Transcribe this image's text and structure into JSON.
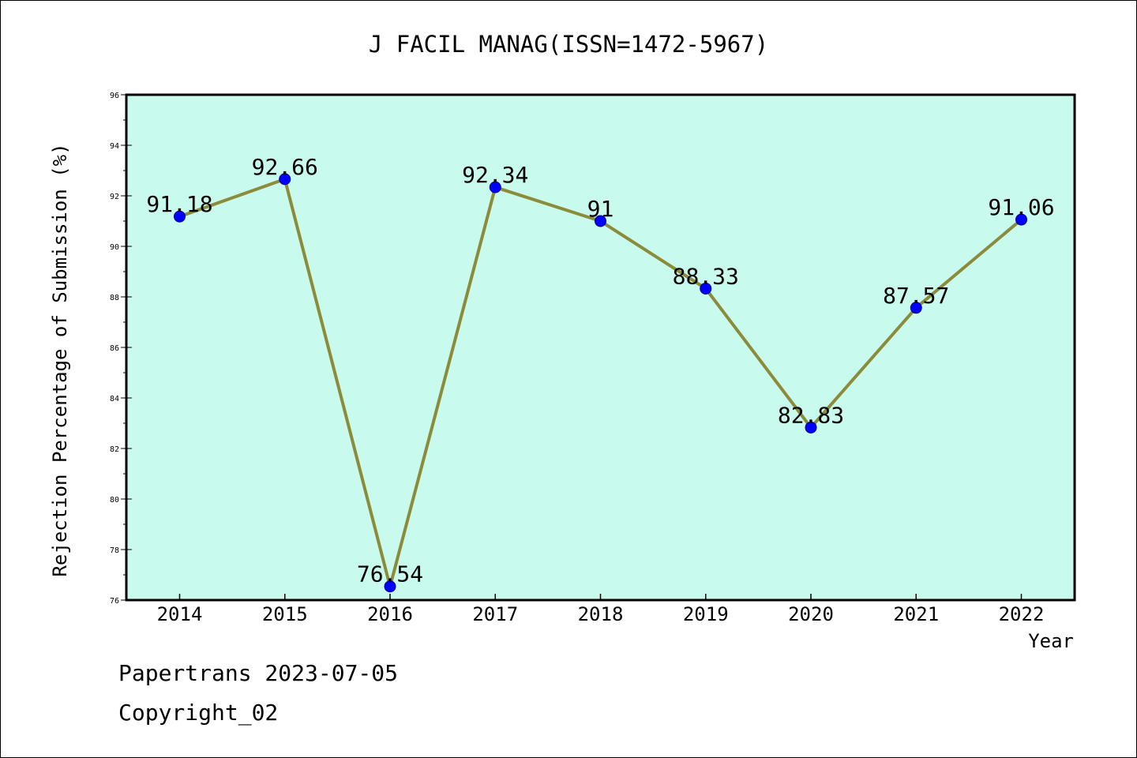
{
  "chart_data": {
    "type": "line",
    "title": "J FACIL MANAG(ISSN=1472-5967)",
    "xlabel": "Year",
    "ylabel": "Rejection Percentage of Submission (%)",
    "categories": [
      "2014",
      "2015",
      "2016",
      "2017",
      "2018",
      "2019",
      "2020",
      "2021",
      "2022"
    ],
    "series": [
      {
        "values": [
          91.18,
          92.66,
          76.54,
          92.34,
          91,
          88.33,
          82.83,
          87.57,
          91.06
        ],
        "labels": [
          "91.18",
          "92.66",
          "76.54",
          "92.34",
          "91",
          "88.33",
          "82.83",
          "87.57",
          "91.06"
        ],
        "line_color": "#8b8b3a",
        "marker_color": "#0000ff"
      }
    ],
    "ylim": [
      76,
      96
    ],
    "yticks": [
      "76",
      "78",
      "80",
      "82",
      "84",
      "86",
      "88",
      "90",
      "92",
      "94",
      "96"
    ],
    "plot_background": "#c8fbee",
    "grid": false,
    "legend": "none"
  },
  "footer": {
    "line1": "Papertrans 2023-07-05",
    "line2": "Copyright_02"
  }
}
